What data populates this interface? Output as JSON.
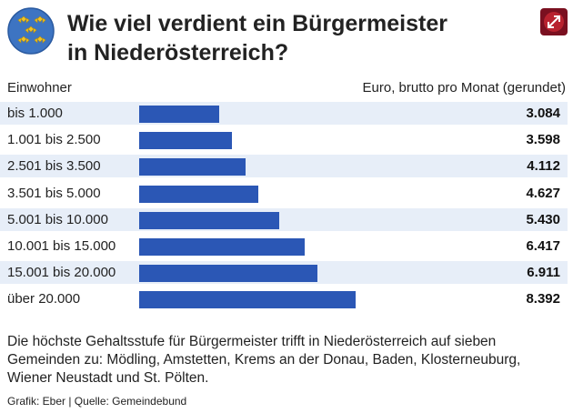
{
  "header": {
    "title_line1": "Wie viel verdient ein Bürgermeister",
    "title_line2": "in Niederösterreich?",
    "logo_icon": "coat-of-arms-icon",
    "badge_icon": "expand-arrows-icon"
  },
  "columns": {
    "left": "Einwohner",
    "right": "Euro, brutto pro Monat (gerundet)"
  },
  "chart_data": {
    "type": "bar",
    "orientation": "horizontal",
    "categories": [
      "bis 1.000",
      "1.001 bis 2.500",
      "2.501 bis 3.500",
      "3.501 bis 5.000",
      "5.001 bis 10.000",
      "10.001 bis 15.000",
      "15.001 bis 20.000",
      "über 20.000"
    ],
    "values": [
      3084,
      3598,
      4112,
      4627,
      5430,
      6417,
      6911,
      8392
    ],
    "value_labels": [
      "3.084",
      "3.598",
      "4.112",
      "4.627",
      "5.430",
      "6.417",
      "6.911",
      "8.392"
    ],
    "bar_color": "#2b57b5",
    "row_stripe_color": "#e7eef8"
  },
  "note": "Die höchste Gehaltsstufe für Bürgermeister trifft in Niederösterreich auf sieben Gemeinden zu: Mödling, Amstetten, Krems an der Donau, Baden, Klosterneuburg, Wiener Neustadt und St. Pölten.",
  "source": "Grafik: Eber | Quelle: Gemeindebund"
}
